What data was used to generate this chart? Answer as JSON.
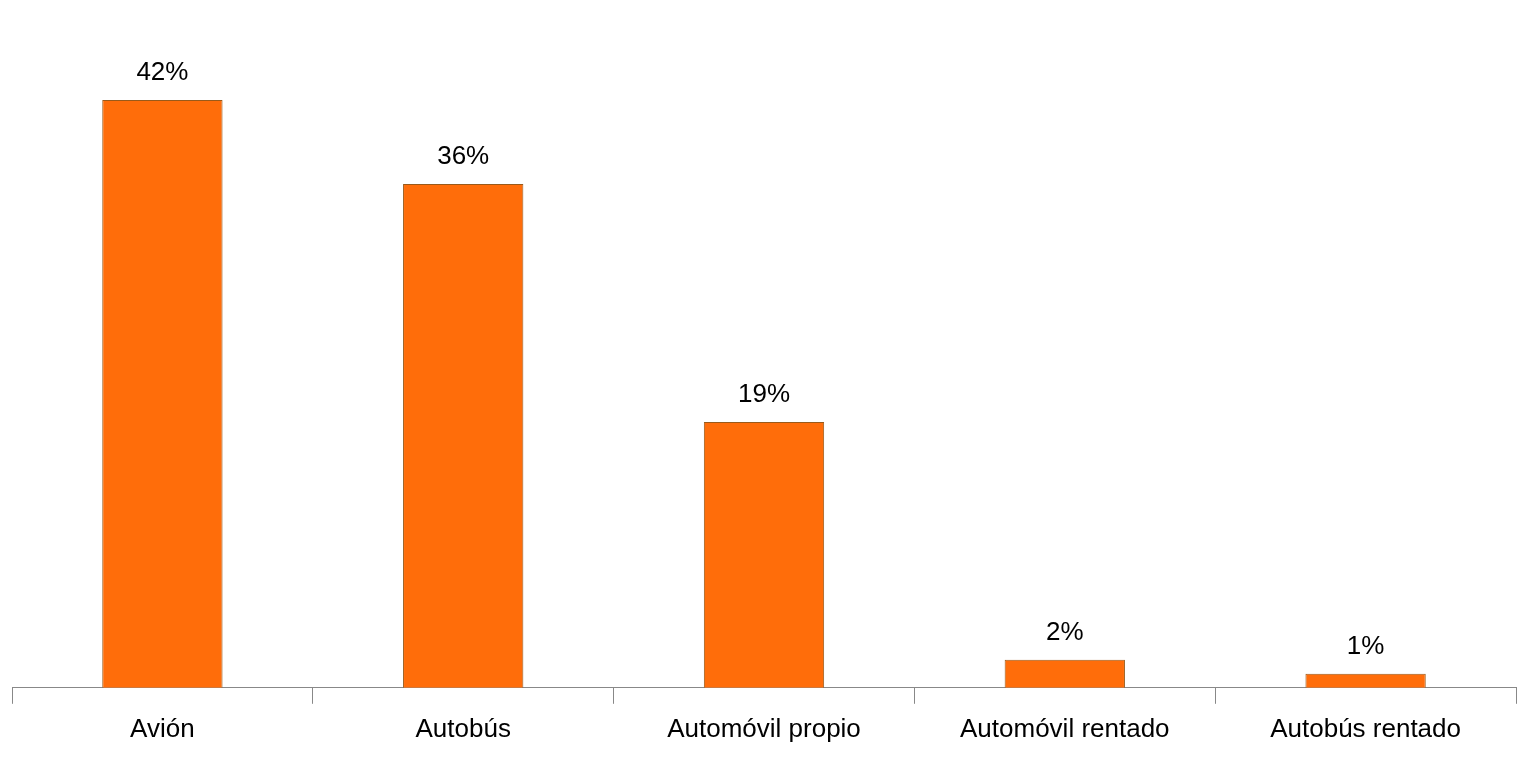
{
  "chart_data": {
    "type": "bar",
    "categories": [
      "Avión",
      "Autobús",
      "Automóvil propio",
      "Automóvil rentado",
      "Autobús rentado"
    ],
    "values": [
      42,
      36,
      19,
      2,
      1
    ],
    "value_labels": [
      "42%",
      "36%",
      "19%",
      "2%",
      "1%"
    ],
    "color": "#ff6d0a"
  }
}
